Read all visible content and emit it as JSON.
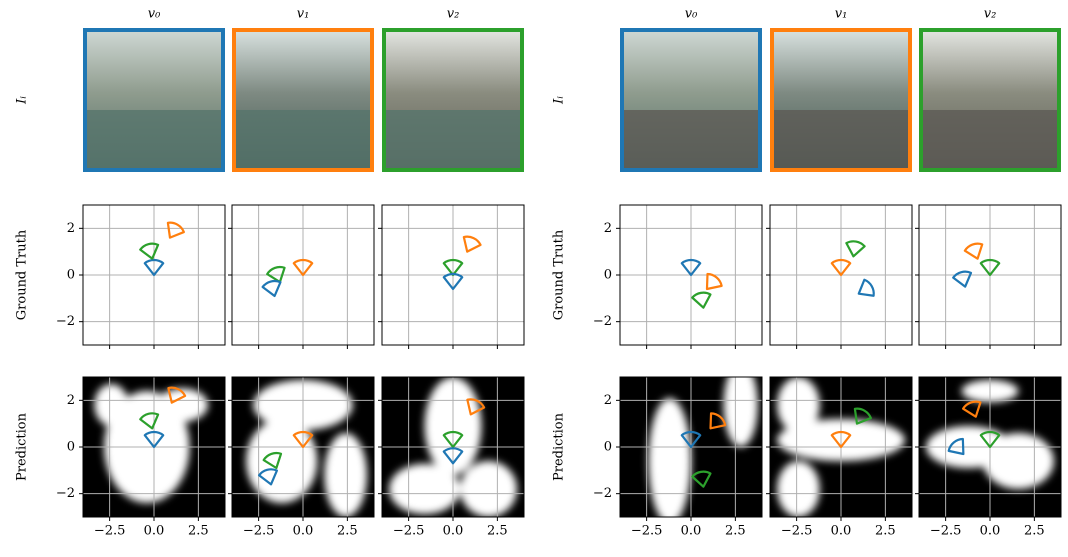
{
  "column_labels": [
    "v₀",
    "v₁",
    "v₂"
  ],
  "row_labels": [
    "Iᵢ",
    "Ground Truth",
    "Prediction"
  ],
  "axes": {
    "xlim": [
      -4,
      4
    ],
    "ylim": [
      -3,
      3
    ],
    "xticks": [
      {
        "value": -2.5,
        "label": "−2.5"
      },
      {
        "value": 0,
        "label": "0.0"
      },
      2.5
    ],
    "yticks": [
      {
        "value": -2,
        "label": "−2"
      },
      0,
      2
    ],
    "grid": true
  },
  "chart_data": [
    {
      "type": "scatter",
      "series": [
        {
          "color": "#1f77b4",
          "x": [
            0
          ],
          "values": [
            0
          ],
          "heading": [
            0
          ]
        },
        {
          "color": "#2ca02c",
          "x": [
            -0.1
          ],
          "values": [
            0.7
          ],
          "heading": [
            -15
          ]
        },
        {
          "color": "#ff7f0e",
          "x": [
            0.9
          ],
          "values": [
            1.6
          ],
          "heading": [
            30
          ]
        }
      ]
    },
    {
      "type": "scatter",
      "series": [
        {
          "color": "#ff7f0e",
          "x": [
            0
          ],
          "values": [
            0
          ],
          "heading": [
            0
          ]
        },
        {
          "color": "#2ca02c",
          "x": [
            -1.3
          ],
          "values": [
            -0.3
          ],
          "heading": [
            -20
          ]
        },
        {
          "color": "#1f77b4",
          "x": [
            -1.6
          ],
          "values": [
            -0.9
          ],
          "heading": [
            -15
          ]
        }
      ]
    },
    {
      "type": "scatter",
      "series": [
        {
          "color": "#2ca02c",
          "x": [
            0
          ],
          "values": [
            0
          ],
          "heading": [
            0
          ]
        },
        {
          "color": "#1f77b4",
          "x": [
            0
          ],
          "values": [
            -0.6
          ],
          "heading": [
            0
          ]
        },
        {
          "color": "#ff7f0e",
          "x": [
            0.8
          ],
          "values": [
            1.0
          ],
          "heading": [
            25
          ]
        }
      ]
    },
    {
      "type": "scatter",
      "series": [
        {
          "color": "#1f77b4",
          "x": [
            0
          ],
          "values": [
            0
          ],
          "heading": [
            0
          ]
        },
        {
          "color": "#2ca02c",
          "x": [
            -0.1
          ],
          "values": [
            0.8
          ],
          "heading": [
            -15
          ]
        },
        {
          "color": "#ff7f0e",
          "x": [
            1.0
          ],
          "values": [
            1.9
          ],
          "heading": [
            25
          ]
        }
      ]
    },
    {
      "type": "scatter",
      "series": [
        {
          "color": "#ff7f0e",
          "x": [
            0
          ],
          "values": [
            0
          ],
          "heading": [
            0
          ]
        },
        {
          "color": "#2ca02c",
          "x": [
            -1.5
          ],
          "values": [
            -0.9
          ],
          "heading": [
            -20
          ]
        },
        {
          "color": "#1f77b4",
          "x": [
            -1.8
          ],
          "values": [
            -1.6
          ],
          "heading": [
            -15
          ]
        }
      ]
    },
    {
      "type": "scatter",
      "series": [
        {
          "color": "#2ca02c",
          "x": [
            0
          ],
          "values": [
            0
          ],
          "heading": [
            0
          ]
        },
        {
          "color": "#1f77b4",
          "x": [
            0
          ],
          "values": [
            -0.7
          ],
          "heading": [
            0
          ]
        },
        {
          "color": "#ff7f0e",
          "x": [
            1.0
          ],
          "values": [
            1.4
          ],
          "heading": [
            25
          ]
        }
      ]
    },
    {
      "type": "scatter",
      "series": [
        {
          "color": "#1f77b4",
          "x": [
            0
          ],
          "values": [
            0
          ],
          "heading": [
            0
          ]
        },
        {
          "color": "#ff7f0e",
          "x": [
            0.9
          ],
          "values": [
            -0.6
          ],
          "heading": [
            40
          ]
        },
        {
          "color": "#2ca02c",
          "x": [
            0.7
          ],
          "values": [
            -1.4
          ],
          "heading": [
            -10
          ]
        }
      ]
    },
    {
      "type": "scatter",
      "series": [
        {
          "color": "#ff7f0e",
          "x": [
            0
          ],
          "values": [
            0
          ],
          "heading": [
            0
          ]
        },
        {
          "color": "#2ca02c",
          "x": [
            0.7
          ],
          "values": [
            0.8
          ],
          "heading": [
            10
          ]
        },
        {
          "color": "#1f77b4",
          "x": [
            1.0
          ],
          "values": [
            -0.8
          ],
          "heading": [
            60
          ]
        }
      ]
    },
    {
      "type": "scatter",
      "series": [
        {
          "color": "#2ca02c",
          "x": [
            0
          ],
          "values": [
            0
          ],
          "heading": [
            0
          ]
        },
        {
          "color": "#ff7f0e",
          "x": [
            -0.7
          ],
          "values": [
            0.7
          ],
          "heading": [
            -20
          ]
        },
        {
          "color": "#1f77b4",
          "x": [
            -1.4
          ],
          "values": [
            -0.5
          ],
          "heading": [
            -15
          ]
        }
      ]
    },
    {
      "type": "scatter",
      "series": [
        {
          "color": "#1f77b4",
          "x": [
            0
          ],
          "values": [
            0
          ],
          "heading": [
            0
          ]
        },
        {
          "color": "#ff7f0e",
          "x": [
            1.1
          ],
          "values": [
            0.8
          ],
          "heading": [
            40
          ]
        },
        {
          "color": "#2ca02c",
          "x": [
            0.7
          ],
          "values": [
            -1.7
          ],
          "heading": [
            -10
          ]
        }
      ]
    },
    {
      "type": "scatter",
      "series": [
        {
          "color": "#ff7f0e",
          "x": [
            0
          ],
          "values": [
            0
          ],
          "heading": [
            0
          ]
        },
        {
          "color": "#2ca02c",
          "x": [
            0.9
          ],
          "values": [
            1.0
          ],
          "heading": [
            30
          ]
        }
      ]
    },
    {
      "type": "scatter",
      "series": [
        {
          "color": "#2ca02c",
          "x": [
            0
          ],
          "values": [
            0
          ],
          "heading": [
            0
          ]
        },
        {
          "color": "#ff7f0e",
          "x": [
            -0.8
          ],
          "values": [
            1.3
          ],
          "heading": [
            -20
          ]
        },
        {
          "color": "#1f77b4",
          "x": [
            -1.5
          ],
          "values": [
            -0.3
          ],
          "heading": [
            -40
          ]
        }
      ]
    }
  ]
}
